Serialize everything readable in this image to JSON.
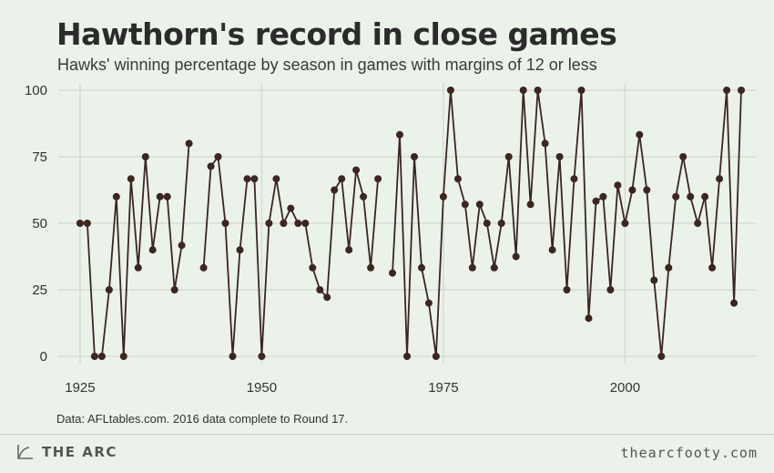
{
  "title": "Hawthorn's record in close games",
  "subtitle": "Hawks' winning percentage by season in games with margins of 12 or less",
  "caption": "Data: AFLtables.com. 2016 data complete to Round 17.",
  "footer": {
    "brand": "THE ARC",
    "site": "thearcfooty.com"
  },
  "colors": {
    "background": "#ebf2e9",
    "grid": "#d7ddd6",
    "line": "#3b2620",
    "point": "#3b2620"
  },
  "icons": {
    "brand_logo": "arc-logo-icon"
  },
  "chart_data": {
    "type": "line",
    "title": "Hawthorn's record in close games",
    "subtitle": "Hawks' winning percentage by season in games with margins of 12 or less",
    "xlabel": "",
    "ylabel": "",
    "xlim": [
      1922,
      2018
    ],
    "ylim": [
      0,
      100
    ],
    "xticks": [
      1925,
      1950,
      1975,
      2000
    ],
    "yticks": [
      0,
      25,
      50,
      75,
      100
    ],
    "grid": true,
    "series": [
      {
        "segments": [
          [
            [
              1925,
              50
            ],
            [
              1926,
              50
            ],
            [
              1927,
              0
            ],
            [
              1928,
              0
            ],
            [
              1929,
              25
            ],
            [
              1930,
              60
            ],
            [
              1931,
              0
            ],
            [
              1932,
              66.7
            ],
            [
              1933,
              33.3
            ],
            [
              1934,
              75
            ],
            [
              1935,
              40
            ],
            [
              1936,
              60
            ],
            [
              1937,
              60
            ],
            [
              1938,
              25
            ],
            [
              1939,
              41.7
            ],
            [
              1940,
              80
            ]
          ],
          [
            [
              1942,
              33.3
            ],
            [
              1943,
              71.4
            ],
            [
              1944,
              75
            ],
            [
              1945,
              50
            ],
            [
              1946,
              0
            ],
            [
              1947,
              40
            ],
            [
              1948,
              66.7
            ],
            [
              1949,
              66.7
            ],
            [
              1950,
              0
            ],
            [
              1951,
              50
            ],
            [
              1952,
              66.7
            ],
            [
              1953,
              50
            ],
            [
              1954,
              55.6
            ],
            [
              1955,
              50
            ],
            [
              1956,
              50
            ],
            [
              1957,
              33.3
            ],
            [
              1958,
              25
            ],
            [
              1959,
              22.2
            ],
            [
              1960,
              62.5
            ],
            [
              1961,
              66.7
            ],
            [
              1962,
              40
            ],
            [
              1963,
              70
            ],
            [
              1964,
              60
            ],
            [
              1965,
              33.3
            ],
            [
              1966,
              66.7
            ]
          ],
          [
            [
              1968,
              31.3
            ],
            [
              1969,
              83.3
            ],
            [
              1970,
              0
            ],
            [
              1971,
              75
            ],
            [
              1972,
              33.3
            ],
            [
              1973,
              20
            ],
            [
              1974,
              0
            ],
            [
              1975,
              60
            ],
            [
              1976,
              100
            ],
            [
              1977,
              66.7
            ],
            [
              1978,
              57.1
            ],
            [
              1979,
              33.3
            ],
            [
              1980,
              57.1
            ],
            [
              1981,
              50
            ],
            [
              1982,
              33.3
            ],
            [
              1983,
              50
            ],
            [
              1984,
              75
            ],
            [
              1985,
              37.5
            ],
            [
              1986,
              100
            ],
            [
              1987,
              57.1
            ],
            [
              1988,
              100
            ],
            [
              1989,
              80
            ],
            [
              1990,
              40
            ],
            [
              1991,
              75
            ],
            [
              1992,
              25
            ],
            [
              1993,
              66.7
            ],
            [
              1994,
              100
            ],
            [
              1995,
              14.3
            ],
            [
              1996,
              58.3
            ],
            [
              1997,
              60
            ],
            [
              1998,
              25
            ],
            [
              1999,
              64.3
            ],
            [
              2000,
              50
            ],
            [
              2001,
              62.5
            ],
            [
              2002,
              83.3
            ],
            [
              2003,
              62.5
            ],
            [
              2004,
              28.6
            ],
            [
              2005,
              0
            ],
            [
              2006,
              33.3
            ],
            [
              2007,
              60
            ],
            [
              2008,
              75
            ],
            [
              2009,
              60
            ],
            [
              2010,
              50
            ],
            [
              2011,
              60
            ],
            [
              2012,
              33.3
            ],
            [
              2013,
              66.7
            ],
            [
              2014,
              100
            ],
            [
              2015,
              20
            ],
            [
              2016,
              100
            ]
          ]
        ]
      }
    ]
  }
}
